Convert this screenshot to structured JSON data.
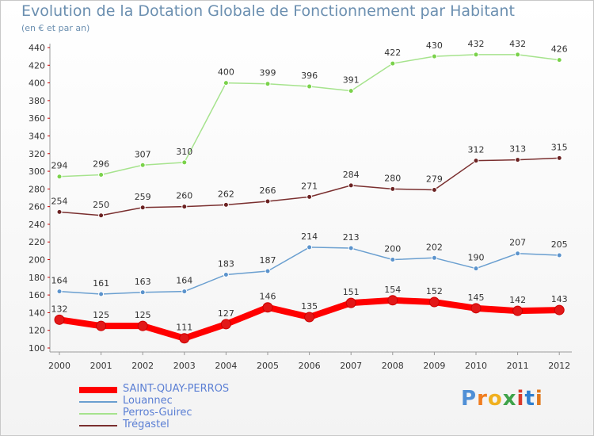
{
  "chart_data": {
    "type": "line",
    "title": "Evolution de la Dotation Globale de Fonctionnement par Habitant",
    "subtitle": "(en € et par an)",
    "categories": [
      "2000",
      "2001",
      "2002",
      "2003",
      "2004",
      "2005",
      "2006",
      "2007",
      "2008",
      "2009",
      "2010",
      "2011",
      "2012"
    ],
    "ylim": [
      100,
      440
    ],
    "y_ticks": [
      100,
      120,
      140,
      160,
      180,
      200,
      220,
      240,
      260,
      280,
      300,
      320,
      340,
      360,
      380,
      400,
      420,
      440
    ],
    "grid": false,
    "legend_position": "bottom-left",
    "series": [
      {
        "name": "SAINT-QUAY-PERROS",
        "color": "#ff0000",
        "marker": "#e21818",
        "width": 8,
        "values": [
          132,
          125,
          125,
          111,
          127,
          146,
          135,
          151,
          154,
          152,
          145,
          142,
          143
        ]
      },
      {
        "name": "Louannec",
        "color": "#6a9fd0",
        "marker": "#5b93cc",
        "width": 1.5,
        "values": [
          164,
          161,
          163,
          164,
          183,
          187,
          214,
          213,
          200,
          202,
          190,
          207,
          205
        ]
      },
      {
        "name": "Perros-Guirec",
        "color": "#a6e38d",
        "marker": "#7ad24a",
        "width": 1.5,
        "values": [
          294,
          296,
          307,
          310,
          400,
          399,
          396,
          391,
          422,
          430,
          432,
          432,
          426
        ]
      },
      {
        "name": "Trégastel",
        "color": "#7a2f2f",
        "marker": "#6b2222",
        "width": 1.5,
        "values": [
          254,
          250,
          259,
          260,
          262,
          266,
          271,
          284,
          280,
          279,
          312,
          313,
          315
        ]
      }
    ]
  },
  "logo": {
    "letters": [
      "P",
      "r",
      "o",
      "x",
      "i",
      "t",
      "i"
    ],
    "colors": [
      "#4f8fd6",
      "#f07d1f",
      "#f0b01f",
      "#3fa34a",
      "#d93a2b",
      "#2f7fd0",
      "#e07a1f"
    ]
  }
}
